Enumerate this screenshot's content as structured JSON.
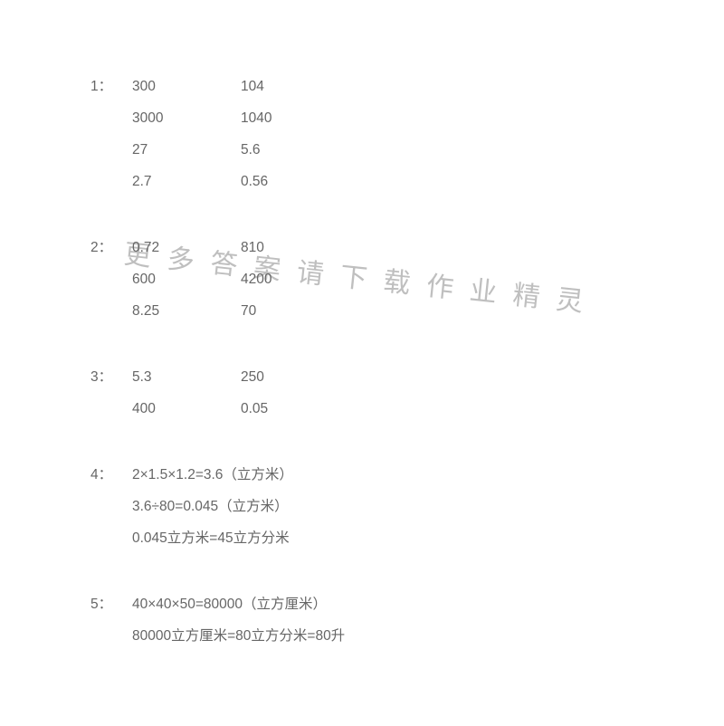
{
  "text_color": "#666666",
  "background_color": "#ffffff",
  "watermark_color": "#bfbfbf",
  "font_size_body": 15.5,
  "font_size_watermark": 30,
  "watermark_rotate_deg": 6,
  "watermark": "更多答案请下载作业精灵",
  "blocks": [
    {
      "label": "1：",
      "rows": [
        {
          "a": "300",
          "b": "104"
        },
        {
          "a": "3000",
          "b": "1040"
        },
        {
          "a": "27",
          "b": "5.6"
        },
        {
          "a": "2.7",
          "b": "0.56"
        }
      ]
    },
    {
      "label": "2：",
      "rows": [
        {
          "a": "0.72",
          "b": "810"
        },
        {
          "a": "600",
          "b": "4200"
        },
        {
          "a": "8.25",
          "b": "70"
        }
      ]
    },
    {
      "label": "3：",
      "rows": [
        {
          "a": "5.3",
          "b": "250"
        },
        {
          "a": "400",
          "b": "0.05"
        }
      ]
    },
    {
      "label": "4：",
      "lines": [
        " 2×1.5×1.2=3.6（立方米）",
        " 3.6÷80=0.045（立方米）",
        " 0.045立方米=45立方分米"
      ]
    },
    {
      "label": "5：",
      "lines": [
        "40×40×50=80000（立方厘米）",
        "80000立方厘米=80立方分米=80升"
      ]
    }
  ]
}
